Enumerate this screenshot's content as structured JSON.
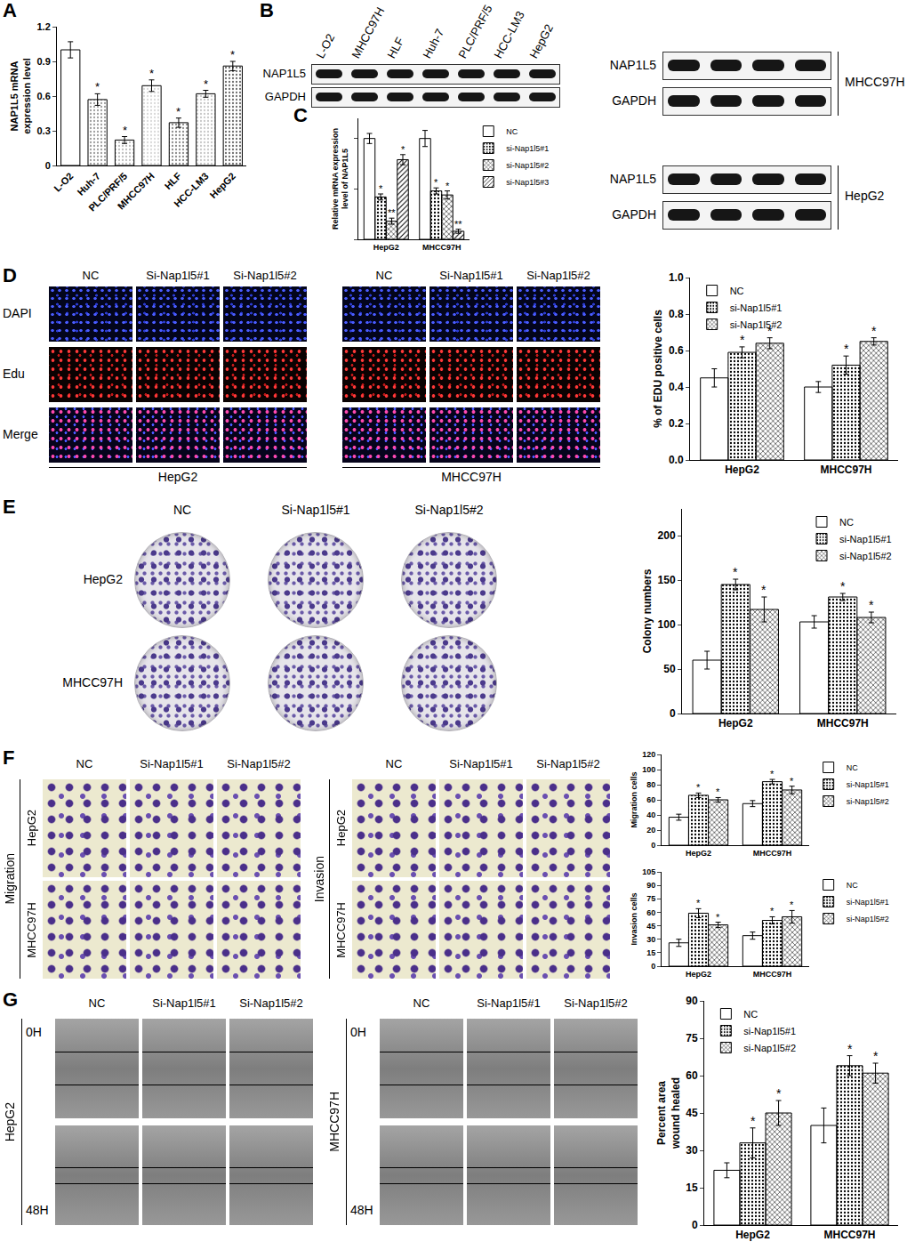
{
  "chart_data": [
    {
      "type": "bar",
      "y_label": "NAP1L5 mRNA\nexpression level",
      "categories": [
        "L-O2",
        "Huh-7",
        "PLC/PRF/5",
        "MHCC97H",
        "HLF",
        "HCC-LM3",
        "HepG2"
      ],
      "values": [
        1.0,
        0.57,
        0.22,
        0.69,
        0.37,
        0.62,
        0.86
      ],
      "errors": [
        0.07,
        0.05,
        0.03,
        0.05,
        0.04,
        0.03,
        0.04
      ],
      "significance": [
        null,
        "*",
        "*",
        "*",
        "*",
        "*",
        "*"
      ],
      "colors": [
        "#ffffff",
        "#9e9e9e",
        "#bdbdbd",
        "#d9d9d9",
        "#8c8c8c",
        "#c8c8c8",
        "#6e6e6e"
      ],
      "ylim": [
        0,
        1.2
      ],
      "yticks": [
        0,
        0.3,
        0.6,
        0.9,
        1.2
      ]
    },
    {
      "type": "bar",
      "y_label": "Relative mRNA expression\nlevel of NAP1L5",
      "categories": [
        "HepG2",
        "MHCC97H"
      ],
      "series": [
        {
          "name": "NC",
          "color": "#ffffff",
          "values": [
            1.0,
            1.0
          ],
          "errors": [
            0.05,
            0.08
          ],
          "significance": [
            null,
            null
          ]
        },
        {
          "name": "si-Nap1l5#1",
          "color": "#c0c0c0",
          "values": [
            0.42,
            0.48
          ],
          "errors": [
            0.03,
            0.03
          ],
          "significance": [
            "*",
            "*"
          ]
        },
        {
          "name": "si-Nap1l5#2",
          "color": "#808080",
          "values": [
            0.18,
            0.44
          ],
          "errors": [
            0.03,
            0.04
          ],
          "significance": [
            "**",
            "*"
          ]
        },
        {
          "name": "si-Nap1l5#3",
          "color": "#e0e0e0",
          "values": [
            0.79,
            0.08
          ],
          "errors": [
            0.05,
            0.02
          ],
          "significance": [
            "*",
            "**"
          ]
        }
      ],
      "ylim": [
        0,
        1.2
      ],
      "yticks": [
        0,
        0.5,
        1
      ],
      "tick_labels": "x",
      "legend": "right"
    },
    {
      "type": "bar",
      "y_label": "% of EDU positive cells",
      "categories": [
        "HepG2",
        "MHCC97H"
      ],
      "series": [
        {
          "name": "NC",
          "color": "#ffffff",
          "values": [
            0.45,
            0.4
          ],
          "errors": [
            0.05,
            0.03
          ],
          "significance": [
            null,
            null
          ]
        },
        {
          "name": "si-Nap1l5#1",
          "color": "#c0c0c0",
          "values": [
            0.59,
            0.52
          ],
          "errors": [
            0.03,
            0.05
          ],
          "significance": [
            "*",
            "*"
          ]
        },
        {
          "name": "si-Nap1l5#2",
          "color": "#808080",
          "values": [
            0.64,
            0.65
          ],
          "errors": [
            0.03,
            0.02
          ],
          "significance": [
            "*",
            "*"
          ]
        }
      ],
      "ylim": [
        0,
        1
      ],
      "yticks": [
        {
          "value": 0,
          "label": "0.0"
        },
        0.2,
        0.4,
        0.6,
        0.8,
        {
          "value": 1,
          "label": "1.0"
        }
      ],
      "legend": "top-left"
    },
    {
      "type": "bar",
      "y_label": "Colony numbers",
      "categories": [
        "HepG2",
        "MHCC97H"
      ],
      "series": [
        {
          "name": "NC",
          "color": "#ffffff",
          "values": [
            60,
            103
          ],
          "errors": [
            10,
            7
          ],
          "significance": [
            null,
            null
          ]
        },
        {
          "name": "si-Nap1l5#1",
          "color": "#c0c0c0",
          "values": [
            145,
            131
          ],
          "errors": [
            6,
            4
          ],
          "significance": [
            "*",
            "*"
          ]
        },
        {
          "name": "si-Nap1l5#2",
          "color": "#808080",
          "values": [
            117,
            108
          ],
          "errors": [
            14,
            6
          ],
          "significance": [
            "*",
            "*"
          ]
        }
      ],
      "ylim": [
        0,
        230
      ],
      "yticks": [
        0,
        50,
        100,
        150,
        200
      ],
      "legend": "top-right"
    },
    {
      "type": "bar",
      "y_label": "Migration cells",
      "categories": [
        "HepG2",
        "MHCC97H"
      ],
      "series": [
        {
          "name": "NC",
          "color": "#ffffff",
          "values": [
            37,
            55
          ],
          "errors": [
            4,
            4
          ],
          "significance": [
            null,
            null
          ]
        },
        {
          "name": "si-Nap1l5#1",
          "color": "#c0c0c0",
          "values": [
            66,
            84
          ],
          "errors": [
            3,
            3
          ],
          "significance": [
            "*",
            "*"
          ]
        },
        {
          "name": "si-Nap1l5#2",
          "color": "#808080",
          "values": [
            60,
            73
          ],
          "errors": [
            3,
            5
          ],
          "significance": [
            "*",
            "*"
          ]
        }
      ],
      "ylim": [
        0,
        120
      ],
      "yticks": [
        0,
        20,
        40,
        60,
        80,
        100,
        120
      ],
      "legend": "right"
    },
    {
      "type": "bar",
      "y_label": "Invasion cells",
      "categories": [
        "HepG2",
        "MHCC97H"
      ],
      "series": [
        {
          "name": "NC",
          "color": "#ffffff",
          "values": [
            26,
            34
          ],
          "errors": [
            4,
            4
          ],
          "significance": [
            null,
            null
          ]
        },
        {
          "name": "si-Nap1l5#1",
          "color": "#c0c0c0",
          "values": [
            59,
            51
          ],
          "errors": [
            5,
            4
          ],
          "significance": [
            "*",
            "*"
          ]
        },
        {
          "name": "si-Nap1l5#2",
          "color": "#808080",
          "values": [
            46,
            55
          ],
          "errors": [
            3,
            7
          ],
          "significance": [
            "*",
            "*"
          ]
        }
      ],
      "ylim": [
        0,
        105
      ],
      "yticks": [
        0,
        15,
        30,
        45,
        60,
        75,
        90,
        105
      ],
      "legend": "right"
    },
    {
      "type": "bar",
      "y_label": "Percent area\nwound healed",
      "categories": [
        "HepG2",
        "MHCC97H"
      ],
      "series": [
        {
          "name": "NC",
          "color": "#ffffff",
          "values": [
            22,
            40
          ],
          "errors": [
            3,
            7
          ],
          "significance": [
            null,
            null
          ]
        },
        {
          "name": "si-Nap1l5#1",
          "color": "#c0c0c0",
          "values": [
            33,
            64
          ],
          "errors": [
            6,
            4
          ],
          "significance": [
            "*",
            "*"
          ]
        },
        {
          "name": "si-Nap1l5#2",
          "color": "#808080",
          "values": [
            45,
            61
          ],
          "errors": [
            5,
            4
          ],
          "significance": [
            "*",
            "*"
          ]
        }
      ],
      "ylim": [
        0,
        90
      ],
      "yticks": [
        0,
        15,
        30,
        45,
        60,
        75,
        90
      ],
      "legend": "top-left"
    }
  ],
  "panel_letters": [
    "A",
    "B",
    "C",
    "D",
    "E",
    "F",
    "G"
  ],
  "blots": {
    "left": {
      "lanes": [
        "L-O2",
        "MHCC97H",
        "HLF",
        "Huh-7",
        "PLC/PRF/5",
        "HCC-LM3",
        "HepG2"
      ],
      "rows": [
        "NAP1L5",
        "GAPDH"
      ]
    },
    "right": [
      {
        "cell_line": "MHCC97H",
        "rows": [
          "NAP1L5",
          "GAPDH"
        ]
      },
      {
        "cell_line": "HepG2",
        "rows": [
          "NAP1L5",
          "GAPDH"
        ]
      }
    ]
  },
  "image_panels": {
    "D": {
      "columns": [
        "NC",
        "Si-Nap1l5#1",
        "Si-Nap1l5#2"
      ],
      "rows": [
        "DAPI",
        "Edu",
        "Merge"
      ],
      "groups": [
        "HepG2",
        "MHCC97H"
      ]
    },
    "E": {
      "columns": [
        "NC",
        "Si-Nap1l5#1",
        "Si-Nap1l5#2"
      ],
      "rows": [
        "HepG2",
        "MHCC97H"
      ]
    },
    "F": {
      "columns": [
        "NC",
        "Si-Nap1l5#1",
        "Si-Nap1l5#2"
      ],
      "groups": [
        "Migration",
        "Invasion"
      ],
      "rows": [
        "HepG2",
        "MHCC97H"
      ]
    },
    "G": {
      "columns": [
        "NC",
        "Si-Nap1l5#1",
        "Si-Nap1l5#2"
      ],
      "groups": [
        "HepG2",
        "MHCC97H"
      ],
      "times": [
        "0H",
        "48H"
      ]
    }
  }
}
